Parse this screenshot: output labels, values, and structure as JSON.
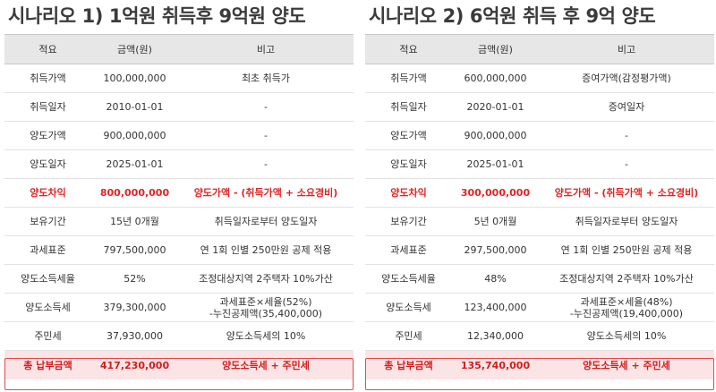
{
  "panels": [
    {
      "title": "시나리오 1) 1억원 취득후 9억원 양도",
      "headers": [
        "적요",
        "금액(원)",
        "비고"
      ],
      "rows": [
        {
          "label": "취득가액",
          "amount": "100,000,000",
          "note": "최초 취득가"
        },
        {
          "label": "취득일자",
          "amount": "2010-01-01",
          "note": "-"
        },
        {
          "label": "양도가액",
          "amount": "900,000,000",
          "note": "-"
        },
        {
          "label": "양도일자",
          "amount": "2025-01-01",
          "note": "-"
        },
        {
          "label": "양도차익",
          "amount": "800,000,000",
          "note": "양도가액 - (취득가액 + 소요경비)"
        },
        {
          "label": "보유기간",
          "amount": "15년 0개월",
          "note": "취득일자로부터 양도일자"
        },
        {
          "label": "과세표준",
          "amount": "797,500,000",
          "note": "연 1회 인별 250만원 공제 적용"
        },
        {
          "label": "양도소득세율",
          "amount": "52%",
          "note": "조정대상지역 2주택자 10%가산"
        },
        {
          "label": "양도소득세",
          "amount": "379,300,000",
          "note": "과세표준×세율(52%)",
          "note2": "-누진공제액(35,400,000)"
        },
        {
          "label": "주민세",
          "amount": "37,930,000",
          "note": "양도소득세의 10%"
        }
      ],
      "total": {
        "label": "총 납부금액",
        "amount": "417,230,000",
        "note": "양도소득세 + 주민세"
      }
    },
    {
      "title": "시나리오 2) 6억원 취득 후 9억 양도",
      "headers": [
        "적요",
        "금액(원)",
        "비고"
      ],
      "rows": [
        {
          "label": "취득가액",
          "amount": "600,000,000",
          "note": "증여가액(감정평가액)"
        },
        {
          "label": "취득일자",
          "amount": "2020-01-01",
          "note": "증여일자"
        },
        {
          "label": "양도가액",
          "amount": "900,000,000",
          "note": "-"
        },
        {
          "label": "양도일자",
          "amount": "2025-01-01",
          "note": "-"
        },
        {
          "label": "양도차익",
          "amount": "300,000,000",
          "note": "양도가액 - (취득가액 + 소요경비)"
        },
        {
          "label": "보유기간",
          "amount": "5년 0개월",
          "note": "취득일자로부터 양도일자"
        },
        {
          "label": "과세표준",
          "amount": "297,500,000",
          "note": "연 1회 인별 250만원 공제 적용"
        },
        {
          "label": "양도소득세율",
          "amount": "48%",
          "note": "조정대상지역 2주택자 10%가산"
        },
        {
          "label": "양도소득세",
          "amount": "123,400,000",
          "note": "과세표준×세율(48%)",
          "note2": "-누진공제액(19,400,000)"
        },
        {
          "label": "주민세",
          "amount": "12,340,000",
          "note": "양도소득세의 10%"
        }
      ],
      "total": {
        "label": "총 납부금액",
        "amount": "135,740,000",
        "note": "양도소득세 + 주민세"
      }
    }
  ]
}
